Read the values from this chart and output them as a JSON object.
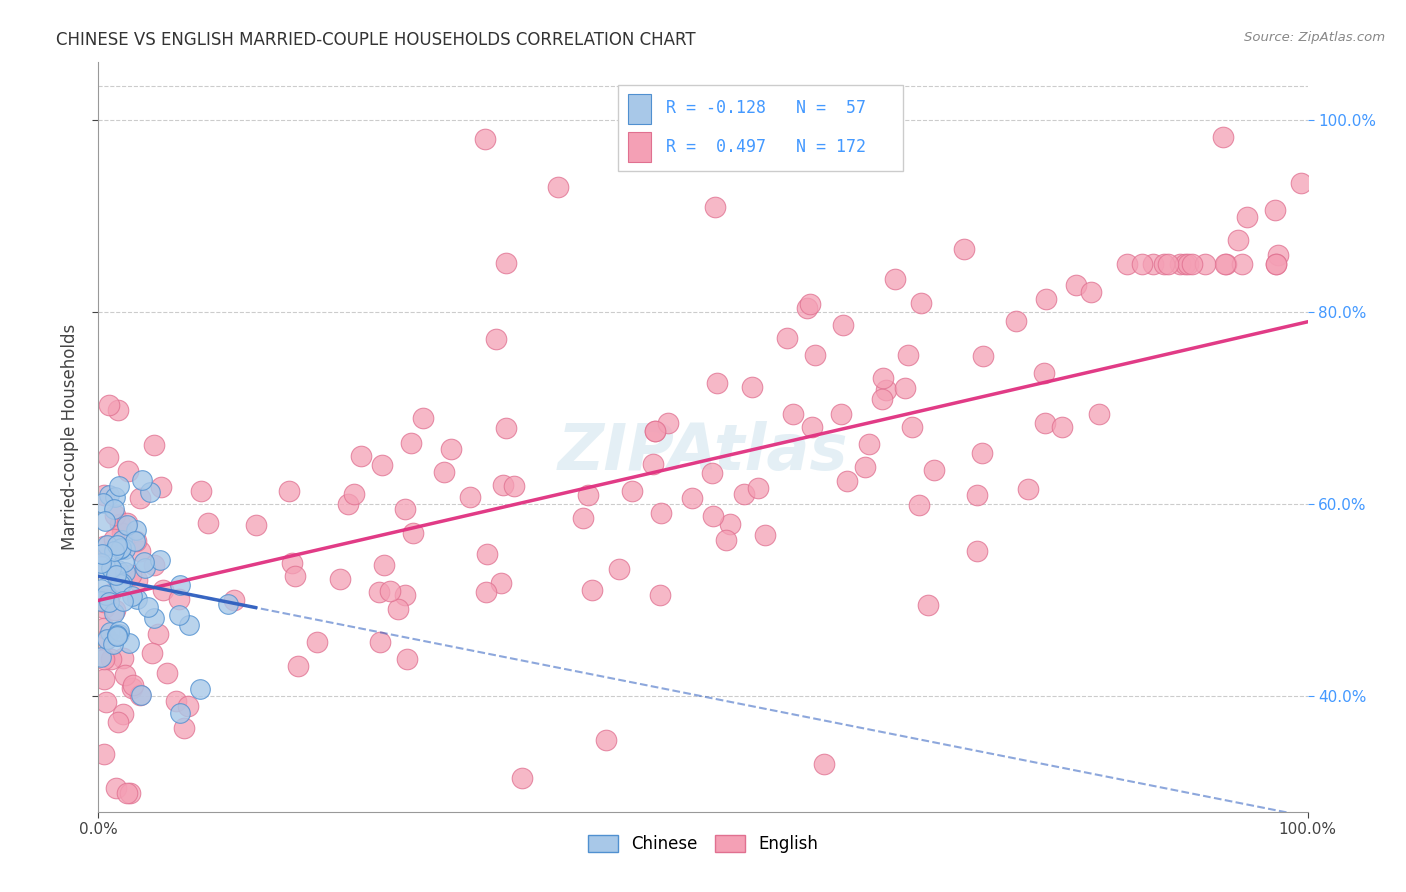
{
  "title": "CHINESE VS ENGLISH MARRIED-COUPLE HOUSEHOLDS CORRELATION CHART",
  "source": "Source: ZipAtlas.com",
  "ylabel": "Married-couple Households",
  "watermark": "ZIPAtlas",
  "legend_blue_R": -0.128,
  "legend_blue_N": 57,
  "legend_pink_R": 0.497,
  "legend_pink_N": 172,
  "blue_color": "#a8c8e8",
  "pink_color": "#f4a0b5",
  "blue_line_color": "#3060c0",
  "pink_line_color": "#e03080",
  "blue_dot_edge": "#5090d0",
  "pink_dot_edge": "#e07090",
  "axis_label_color": "#4499ff",
  "title_color": "#333333",
  "background_color": "#ffffff",
  "grid_color": "#cccccc",
  "xlim": [
    0.0,
    1.0
  ],
  "ylim_min": 0.28,
  "ylim_max": 1.06,
  "yticks": [
    0.4,
    0.6,
    0.8,
    1.0
  ],
  "xtick_labels": [
    "0.0%",
    "100.0%"
  ],
  "ytick_labels": [
    "40.0%",
    "60.0%",
    "80.0%",
    "100.0%"
  ]
}
